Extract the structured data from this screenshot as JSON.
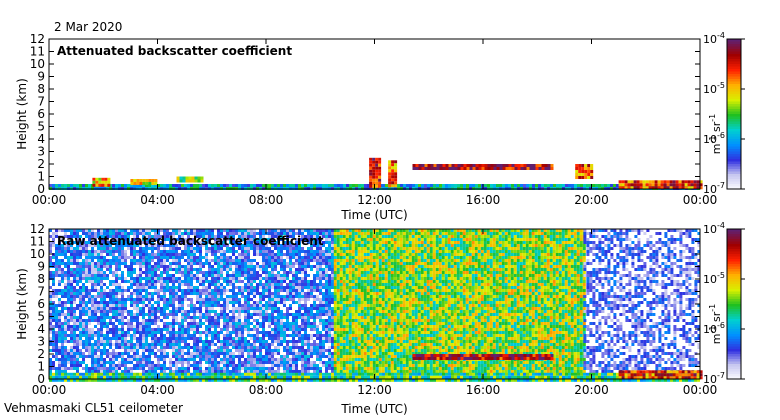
{
  "page": {
    "date": "2 Mar 2020",
    "instrument": "Vehmasmaki CL51 ceilometer"
  },
  "colors": {
    "background": "#ffffff",
    "low_signal": "#d9d9e6",
    "colormap": [
      "#ffffff",
      "#c8c8f0",
      "#3030e0",
      "#0090ff",
      "#00d0d0",
      "#20c020",
      "#d8f000",
      "#ffb000",
      "#ff2000",
      "#a00000",
      "#602070"
    ]
  },
  "chart_data": [
    {
      "type": "heatmap",
      "title": "Attenuated backscatter coefficient",
      "xlabel": "Time (UTC)",
      "ylabel": "Height (km)",
      "xlim": [
        0,
        24
      ],
      "ylim": [
        0,
        12
      ],
      "x_tick_labels": [
        "00:00",
        "04:00",
        "08:00",
        "12:00",
        "16:00",
        "20:00",
        "00:00"
      ],
      "y_tick_labels": [
        "0",
        "1",
        "2",
        "3",
        "4",
        "5",
        "6",
        "7",
        "8",
        "9",
        "10",
        "11",
        "12"
      ],
      "colorbar": {
        "label_base": "m",
        "label_exp1": "-1",
        "label_mid": " sr",
        "label_exp2": "-1",
        "scale": "log",
        "range": [
          1e-07,
          0.0001
        ],
        "tick_labels": [
          {
            "base": "10",
            "exp": "-7"
          },
          {
            "base": "10",
            "exp": "-6"
          },
          {
            "base": "10",
            "exp": "-5"
          },
          {
            "base": "10",
            "exp": "-4"
          }
        ]
      },
      "features": [
        {
          "name": "surface-layer",
          "t_start": 0.0,
          "t_end": 24.0,
          "h_base": 0.0,
          "h_top": 0.4,
          "level": 0.35
        },
        {
          "name": "cloud-early-1",
          "t_start": 1.6,
          "t_end": 2.2,
          "h_base": 0.4,
          "h_top": 0.9,
          "level": 0.7
        },
        {
          "name": "cloud-early-2",
          "t_start": 3.0,
          "t_end": 3.9,
          "h_base": 0.5,
          "h_top": 0.8,
          "level": 0.6
        },
        {
          "name": "cloud-early-3",
          "t_start": 4.7,
          "t_end": 5.6,
          "h_base": 0.7,
          "h_top": 1.0,
          "level": 0.55
        },
        {
          "name": "cloud-noon-1",
          "t_start": 11.8,
          "t_end": 12.2,
          "h_base": 0.3,
          "h_top": 2.5,
          "level": 0.85
        },
        {
          "name": "cloud-noon-2",
          "t_start": 12.5,
          "t_end": 12.8,
          "h_base": 0.3,
          "h_top": 2.3,
          "level": 0.75
        },
        {
          "name": "cloud-afternoon",
          "t_start": 13.4,
          "t_end": 18.5,
          "h_base": 1.7,
          "h_top": 2.0,
          "level": 0.9
        },
        {
          "name": "cloud-evening",
          "t_start": 19.4,
          "t_end": 20.0,
          "h_base": 1.0,
          "h_top": 2.0,
          "level": 0.75
        },
        {
          "name": "fog-late",
          "t_start": 21.0,
          "t_end": 24.0,
          "h_base": 0.0,
          "h_top": 0.7,
          "level": 0.8
        }
      ]
    },
    {
      "type": "heatmap",
      "title": "Raw attenuated backscatter coefficient",
      "xlabel": "Time (UTC)",
      "ylabel": "Height (km)",
      "xlim": [
        0,
        24
      ],
      "ylim": [
        0,
        12
      ],
      "x_tick_labels": [
        "00:00",
        "04:00",
        "08:00",
        "12:00",
        "16:00",
        "20:00",
        "00:00"
      ],
      "y_tick_labels": [
        "0",
        "1",
        "2",
        "3",
        "4",
        "5",
        "6",
        "7",
        "8",
        "9",
        "10",
        "11",
        "12"
      ],
      "colorbar": {
        "label_base": "m",
        "label_exp1": "-1",
        "label_mid": " sr",
        "label_exp2": "-1",
        "scale": "log",
        "range": [
          1e-07,
          0.0001
        ],
        "tick_labels": [
          {
            "base": "10",
            "exp": "-7"
          },
          {
            "base": "10",
            "exp": "-6"
          },
          {
            "base": "10",
            "exp": "-5"
          },
          {
            "base": "10",
            "exp": "-4"
          }
        ]
      },
      "features": [
        {
          "name": "noise-night",
          "t_start": 0.0,
          "t_end": 10.5,
          "h_base": 0.5,
          "h_top": 12.0,
          "level": 0.2
        },
        {
          "name": "noise-day",
          "t_start": 10.5,
          "t_end": 19.7,
          "h_base": 0.5,
          "h_top": 12.0,
          "level": 0.55
        },
        {
          "name": "noise-evening",
          "t_start": 19.7,
          "t_end": 24.0,
          "h_base": 0.5,
          "h_top": 12.0,
          "level": 0.12
        },
        {
          "name": "surface-layer",
          "t_start": 0.0,
          "t_end": 24.0,
          "h_base": 0.0,
          "h_top": 0.5,
          "level": 0.45
        },
        {
          "name": "cloud-afternoon",
          "t_start": 13.4,
          "t_end": 18.5,
          "h_base": 1.7,
          "h_top": 2.0,
          "level": 0.9
        },
        {
          "name": "fog-late",
          "t_start": 21.0,
          "t_end": 24.0,
          "h_base": 0.0,
          "h_top": 0.7,
          "level": 0.8
        }
      ]
    }
  ]
}
